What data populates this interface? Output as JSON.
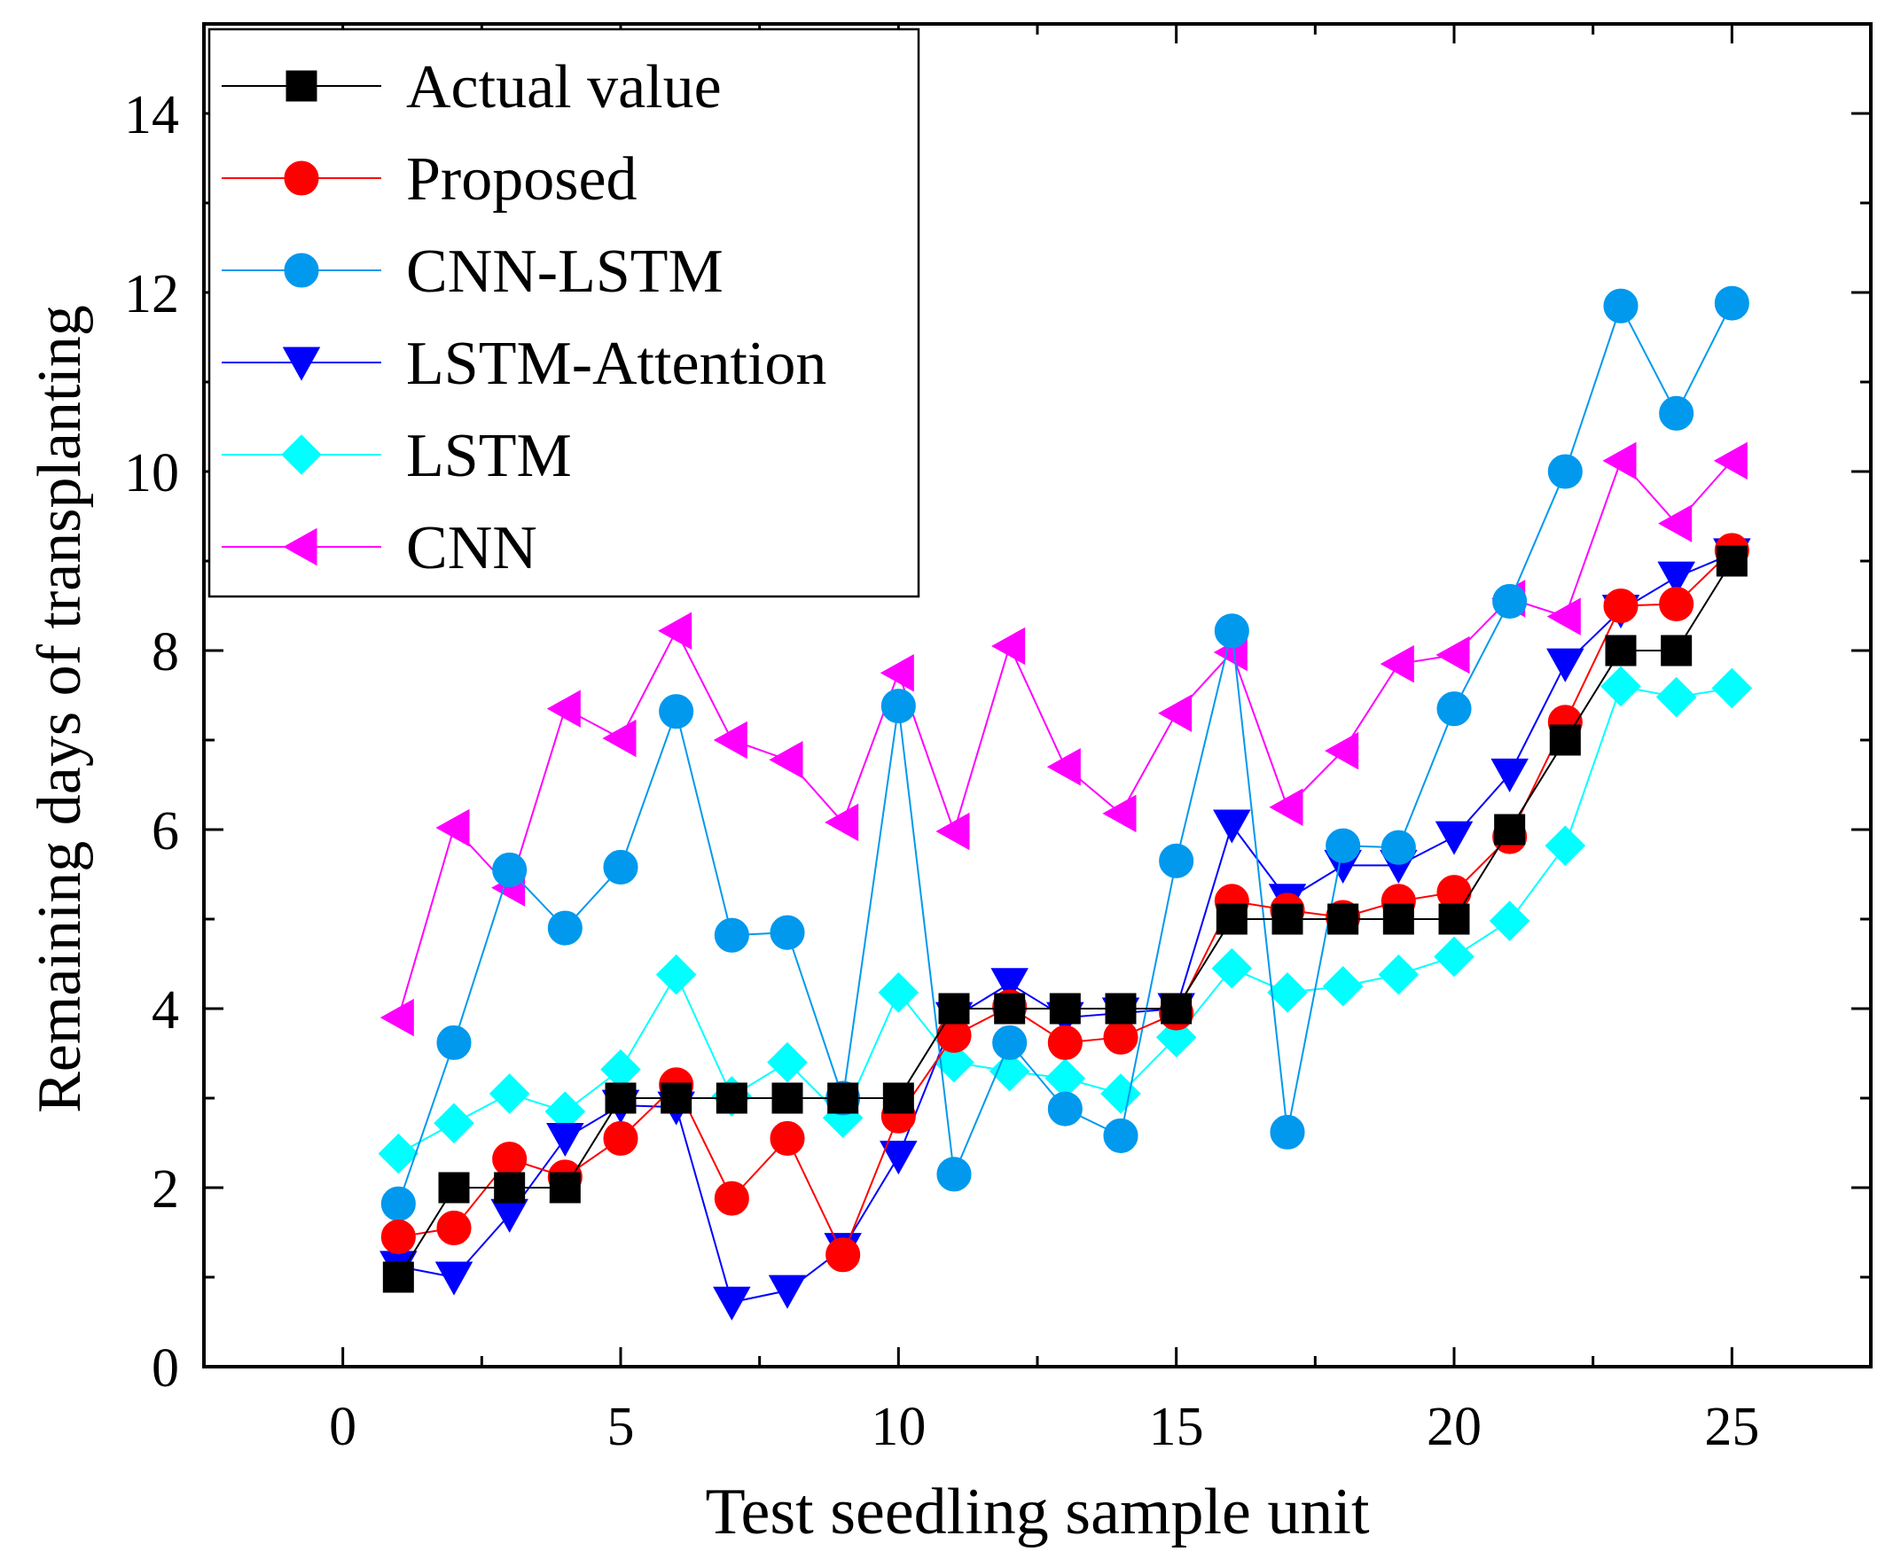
{
  "chart_data": {
    "type": "line",
    "title": "",
    "xlabel": "Test seedling sample unit",
    "ylabel": "Remaining days of transplanting",
    "xlim": [
      -2.5,
      27.5
    ],
    "ylim": [
      0,
      15
    ],
    "xticks": [
      0,
      5,
      10,
      15,
      20,
      25
    ],
    "yticks": [
      0,
      2,
      4,
      6,
      8,
      10,
      12,
      14
    ],
    "grid": false,
    "legend_position": "top-left",
    "x": [
      1,
      2,
      3,
      4,
      5,
      6,
      7,
      8,
      9,
      10,
      11,
      12,
      13,
      14,
      15,
      16,
      17,
      18,
      19,
      20,
      21,
      22,
      23,
      24,
      25
    ],
    "series": [
      {
        "name": "Actual value",
        "color": "#000000",
        "marker": "square",
        "values": [
          1,
          2,
          2,
          2,
          3,
          3,
          3,
          3,
          3,
          3,
          4,
          4,
          4,
          4,
          4,
          5,
          5,
          5,
          5,
          5,
          6,
          7,
          8,
          8,
          9
        ]
      },
      {
        "name": "Proposed",
        "color": "#ff0000",
        "marker": "circle",
        "values": [
          1.45,
          1.55,
          2.32,
          2.12,
          2.55,
          3.15,
          1.88,
          2.55,
          1.25,
          2.8,
          3.7,
          4.02,
          3.62,
          3.68,
          3.95,
          5.2,
          5.1,
          5.02,
          5.2,
          5.3,
          5.92,
          7.2,
          8.5,
          8.52,
          9.12
        ]
      },
      {
        "name": "CNN-LSTM",
        "color": "#0099ee",
        "marker": "circle",
        "values": [
          1.82,
          3.62,
          5.55,
          4.9,
          5.58,
          7.32,
          4.82,
          4.85,
          3.0,
          7.38,
          2.15,
          3.62,
          2.88,
          2.58,
          5.65,
          8.22,
          2.62,
          5.82,
          5.8,
          7.35,
          8.55,
          10.0,
          11.85,
          10.65,
          11.88
        ]
      },
      {
        "name": "LSTM-Attention",
        "color": "#0000ff",
        "marker": "triangle-down",
        "values": [
          1.12,
          1.0,
          1.7,
          2.55,
          2.92,
          2.9,
          0.72,
          0.85,
          1.32,
          2.35,
          3.9,
          4.28,
          3.9,
          3.95,
          4.0,
          6.05,
          5.22,
          5.6,
          5.6,
          5.92,
          6.62,
          7.85,
          8.45,
          8.82,
          9.08
        ]
      },
      {
        "name": "LSTM",
        "color": "#00ffff",
        "marker": "diamond",
        "values": [
          2.38,
          2.72,
          3.05,
          2.85,
          3.32,
          4.38,
          3.02,
          3.4,
          2.78,
          4.18,
          3.4,
          3.3,
          3.22,
          3.05,
          3.68,
          4.45,
          4.18,
          4.25,
          4.38,
          4.58,
          4.98,
          5.82,
          7.6,
          7.48,
          7.58
        ]
      },
      {
        "name": "CNN",
        "color": "#ff00ff",
        "marker": "triangle-left",
        "values": [
          3.9,
          6.02,
          5.35,
          7.35,
          7.02,
          8.22,
          7.0,
          6.78,
          6.08,
          7.75,
          5.98,
          8.05,
          6.7,
          6.18,
          7.3,
          7.98,
          6.25,
          6.88,
          7.85,
          7.95,
          8.58,
          8.38,
          10.12,
          9.42,
          10.12
        ]
      }
    ]
  }
}
